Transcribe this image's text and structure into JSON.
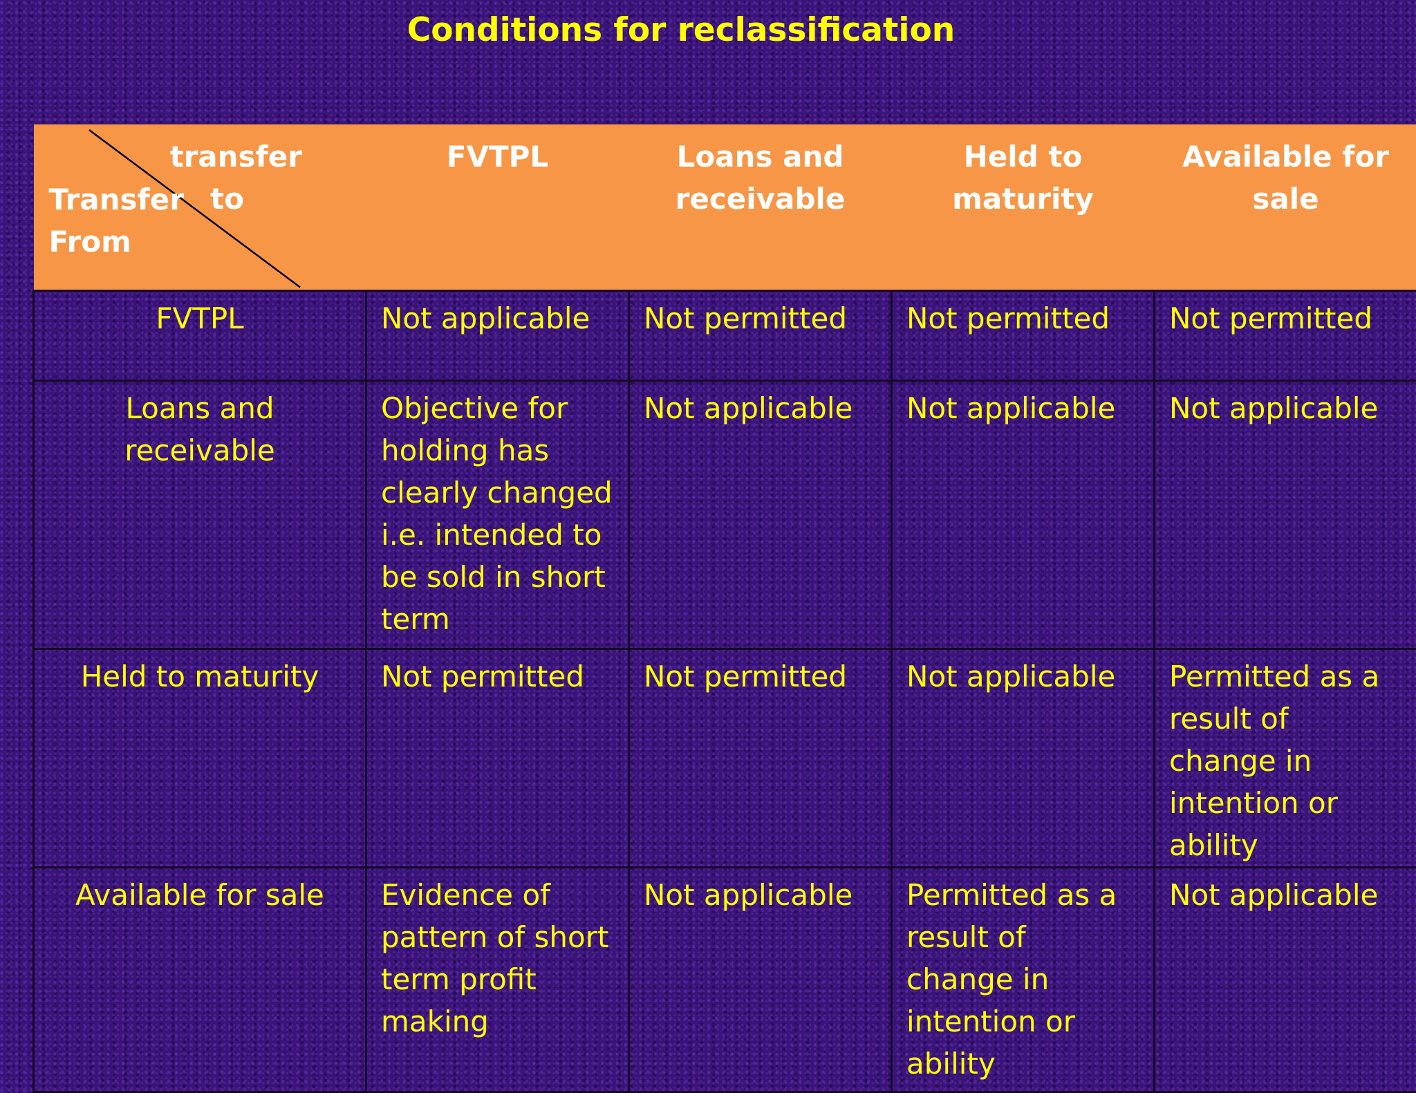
{
  "title": "Conditions for reclassification",
  "colors": {
    "header_background": "#f79646",
    "header_text": "#ffffff",
    "body_text": "#ffff00",
    "slide_background": "#3a1478"
  },
  "table": {
    "corner": {
      "to_label": "transfer\n    to",
      "from_label": "Transfer\nFrom"
    },
    "columns": [
      "FVTPL",
      "Loans and receivable",
      "Held to maturity",
      "Available for sale"
    ],
    "rows": [
      {
        "label": "FVTPL",
        "cells": [
          "Not applicable",
          "Not permitted",
          "Not permitted",
          "Not permitted"
        ]
      },
      {
        "label": "Loans and receivable",
        "cells": [
          "Objective for holding has clearly changed i.e. intended to be sold in short term",
          "Not applicable",
          "Not applicable",
          "Not applicable"
        ]
      },
      {
        "label": "Held to maturity",
        "cells": [
          "Not permitted",
          "Not permitted",
          "Not applicable",
          "Permitted as a result of change in intention or ability"
        ]
      },
      {
        "label": "Available for sale",
        "cells": [
          "Evidence of pattern of short term profit making",
          "Not applicable",
          "Permitted as a result of change in intention or ability",
          "Not applicable"
        ]
      }
    ]
  }
}
